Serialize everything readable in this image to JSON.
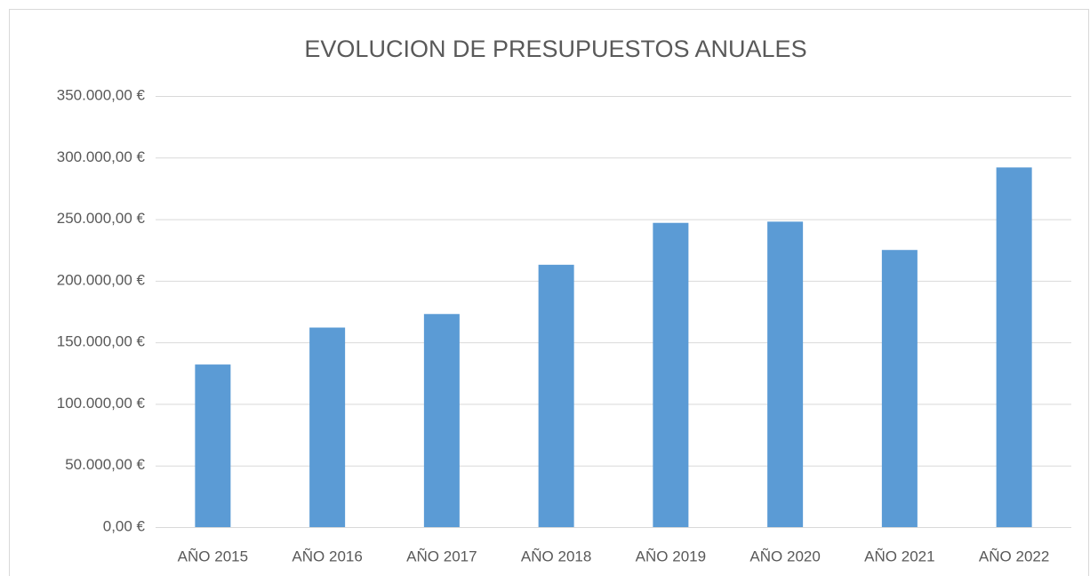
{
  "chart_data": {
    "type": "bar",
    "title": "EVOLUCION DE PRESUPUESTOS ANUALES",
    "categories": [
      "AÑO 2015",
      "AÑO 2016",
      "AÑO 2017",
      "AÑO 2018",
      "AÑO 2019",
      "AÑO 2020",
      "AÑO 2021",
      "AÑO 2022"
    ],
    "values": [
      132000,
      162000,
      173000,
      213000,
      247000,
      248000,
      225000,
      292000
    ],
    "color": "#5b9bd5",
    "ylim": [
      0,
      350000
    ],
    "yticks": [
      {
        "value": 0,
        "label": "0,00 €"
      },
      {
        "value": 50000,
        "label": "50.000,00 €"
      },
      {
        "value": 100000,
        "label": "100.000,00 €"
      },
      {
        "value": 150000,
        "label": "150.000,00 €"
      },
      {
        "value": 200000,
        "label": "200.000,00 €"
      },
      {
        "value": 250000,
        "label": "250.000,00 €"
      },
      {
        "value": 300000,
        "label": "300.000,00 €"
      },
      {
        "value": 350000,
        "label": "350.000,00 €"
      }
    ],
    "grid": true
  }
}
